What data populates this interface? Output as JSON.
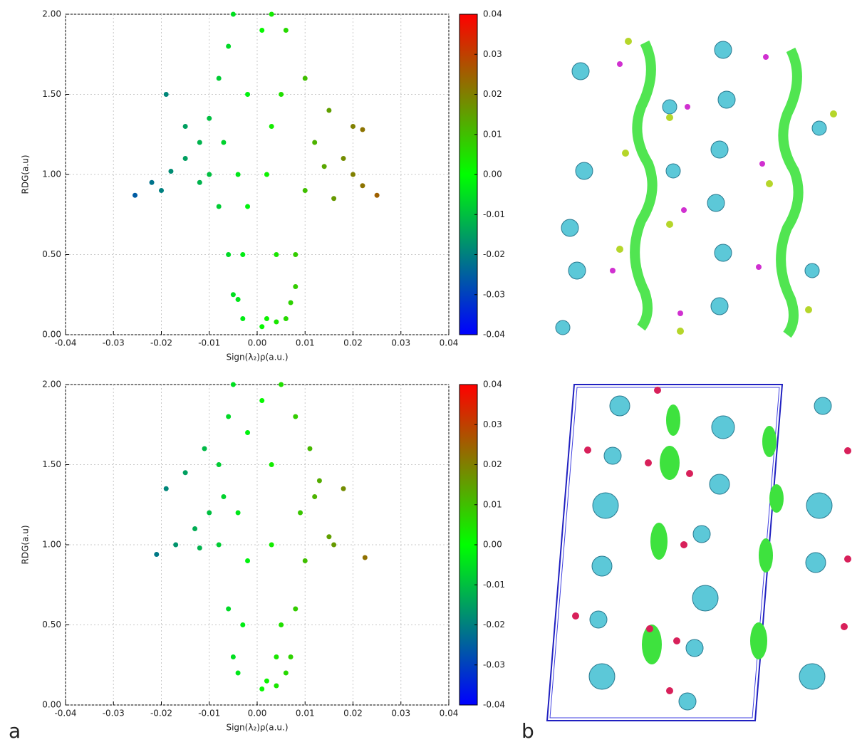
{
  "chart_data": [
    {
      "type": "scatter",
      "ylabel": "RDG(a.u)",
      "xlabel": "Sign(λ₂)ρ(a.u.)",
      "xlim": [
        -0.04,
        0.04
      ],
      "ylim": [
        0,
        2
      ],
      "xticks": [
        -0.04,
        -0.03,
        -0.02,
        -0.01,
        {
          "value": 0,
          "label": "0.00"
        },
        0.01,
        0.02,
        0.03,
        0.04
      ],
      "yticks": [
        {
          "value": 0,
          "label": "0.00"
        },
        {
          "value": 0.5,
          "label": "0.50"
        },
        {
          "value": 1,
          "label": "1.00"
        },
        {
          "value": 1.5,
          "label": "1.50"
        },
        {
          "value": 2,
          "label": "2.00"
        }
      ],
      "grid": true,
      "colorbar": {
        "lim": [
          -0.04,
          0.04
        ],
        "colors": [
          "#0000ff",
          "#00ff00",
          "#ff0000"
        ],
        "ticks": [
          0.04,
          0.03,
          0.02,
          0.01,
          {
            "value": 0,
            "label": "0.00"
          },
          -0.01,
          -0.02,
          -0.03,
          -0.04
        ]
      },
      "x": [
        -0.0255,
        -0.022,
        -0.018,
        -0.015,
        -0.012,
        -0.01,
        -0.008,
        -0.006,
        -0.005,
        -0.015,
        -0.019,
        -0.02,
        -0.012,
        -0.008,
        -0.006,
        -0.005,
        -0.004,
        -0.003,
        -0.003,
        -0.004,
        -0.007,
        -0.01,
        -0.002,
        -0.002,
        0.001,
        0.002,
        0.004,
        0.006,
        0.007,
        0.008,
        0.01,
        0.014,
        0.02,
        0.025,
        0.022,
        0.018,
        0.02,
        0.022,
        0.015,
        0.01,
        0.006,
        0.003,
        0.001,
        0.002,
        0.004,
        0.005,
        0.012,
        0.016,
        0.008,
        0.003
      ],
      "y": [
        0.87,
        0.95,
        1.02,
        1.1,
        1.2,
        1.35,
        1.6,
        1.8,
        2.0,
        1.3,
        1.5,
        0.9,
        0.95,
        0.8,
        0.5,
        0.25,
        0.22,
        0.1,
        0.5,
        1.0,
        1.2,
        1.0,
        1.5,
        0.8,
        0.05,
        0.1,
        0.08,
        0.1,
        0.2,
        0.5,
        0.9,
        1.05,
        1.0,
        0.87,
        0.93,
        1.1,
        1.3,
        1.28,
        1.4,
        1.6,
        1.9,
        2.0,
        1.9,
        1.0,
        0.5,
        1.5,
        1.2,
        0.85,
        0.3,
        1.3
      ]
    },
    {
      "type": "scatter",
      "ylabel": "RDG(a.u)",
      "xlabel": "Sign(λ₂)ρ(a.u.)",
      "xlim": [
        -0.04,
        0.04
      ],
      "ylim": [
        0,
        2
      ],
      "xticks": [
        -0.04,
        -0.03,
        -0.02,
        -0.01,
        {
          "value": 0,
          "label": "0.00"
        },
        0.01,
        0.02,
        0.03,
        0.04
      ],
      "yticks": [
        {
          "value": 0,
          "label": "0.00"
        },
        {
          "value": 0.5,
          "label": "0.50"
        },
        {
          "value": 1,
          "label": "1.00"
        },
        {
          "value": 1.5,
          "label": "1.50"
        },
        {
          "value": 2,
          "label": "2.00"
        }
      ],
      "grid": true,
      "colorbar": {
        "lim": [
          -0.04,
          0.04
        ],
        "colors": [
          "#0000ff",
          "#00ff00",
          "#ff0000"
        ],
        "ticks": [
          0.04,
          0.03,
          0.02,
          0.01,
          {
            "value": 0,
            "label": "0.00"
          },
          -0.01,
          -0.02,
          -0.03,
          -0.04
        ]
      },
      "x": [
        -0.021,
        -0.017,
        -0.013,
        -0.01,
        -0.008,
        -0.006,
        -0.005,
        -0.019,
        -0.015,
        -0.011,
        -0.008,
        -0.006,
        -0.005,
        -0.004,
        -0.003,
        -0.004,
        -0.002,
        -0.002,
        -0.007,
        -0.012,
        0.001,
        0.002,
        0.004,
        0.006,
        0.007,
        0.008,
        0.01,
        0.015,
        0.0225,
        0.018,
        0.013,
        0.016,
        0.011,
        0.008,
        0.005,
        0.003,
        0.001,
        0.003,
        0.005,
        0.009,
        0.012,
        0.004
      ],
      "y": [
        0.94,
        1.0,
        1.1,
        1.2,
        1.5,
        1.8,
        2.0,
        1.35,
        1.45,
        1.6,
        1.0,
        0.6,
        0.3,
        0.2,
        0.5,
        1.2,
        1.7,
        0.9,
        1.3,
        0.98,
        0.1,
        0.15,
        0.12,
        0.2,
        0.3,
        0.6,
        0.9,
        1.05,
        0.92,
        1.35,
        1.4,
        1.0,
        1.6,
        1.8,
        2.0,
        1.5,
        1.9,
        1.0,
        0.5,
        1.2,
        1.3,
        0.3
      ]
    }
  ]
}
